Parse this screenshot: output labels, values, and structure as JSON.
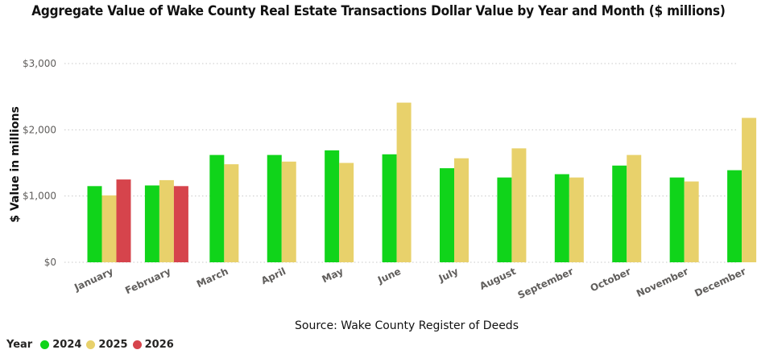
{
  "title": "Aggregate Value of Wake County Real Estate Transactions Dollar Value by Year and Month ($ millions)",
  "chart_data": {
    "type": "bar",
    "title": "Aggregate Value of Wake County Real Estate Transactions Dollar Value by Year and Month ($ millions)",
    "xlabel": "Source: Wake County Register of Deeds",
    "ylabel": "$ Value in millions",
    "ylim": [
      0,
      3000
    ],
    "yticks": [
      0,
      1000,
      2000,
      3000
    ],
    "ytick_labels": [
      "$0",
      "$1,000",
      "$2,000",
      "$3,000"
    ],
    "grid": true,
    "legend_title": "Year",
    "legend_position": "bottom-left",
    "categories": [
      "January",
      "February",
      "March",
      "April",
      "May",
      "June",
      "July",
      "August",
      "September",
      "October",
      "November",
      "December"
    ],
    "series": [
      {
        "name": "2024",
        "color": "#10d41a",
        "values": [
          1150,
          1160,
          1620,
          1620,
          1690,
          1630,
          1420,
          1280,
          1330,
          1460,
          1280,
          1390
        ]
      },
      {
        "name": "2025",
        "color": "#e8d16b",
        "values": [
          1010,
          1240,
          1480,
          1520,
          1500,
          2410,
          1570,
          1720,
          1280,
          1620,
          1220,
          2180
        ]
      },
      {
        "name": "2026",
        "color": "#d6444c",
        "values": [
          1250,
          1150,
          null,
          null,
          null,
          null,
          null,
          null,
          null,
          null,
          null,
          null
        ]
      }
    ]
  }
}
